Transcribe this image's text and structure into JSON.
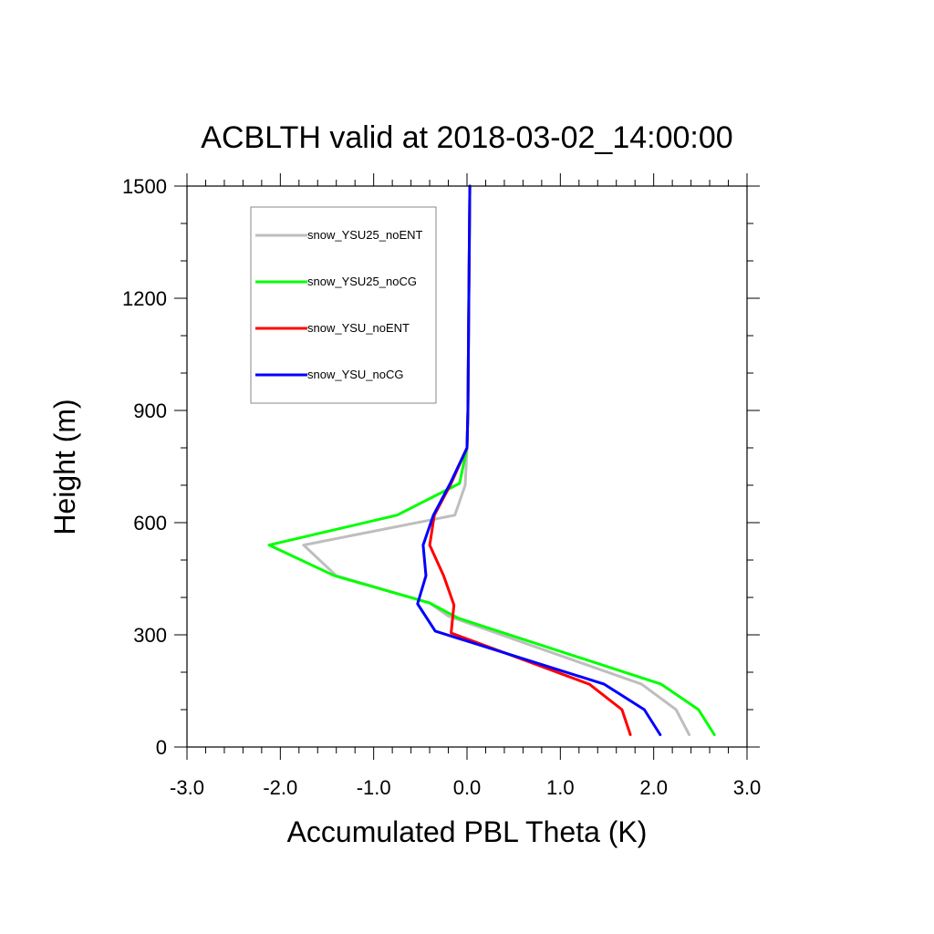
{
  "chart_data": {
    "type": "line",
    "title": "ACBLTH valid at 2018-03-02_14:00:00",
    "xlabel": "Accumulated PBL Theta (K)",
    "ylabel": "Height (m)",
    "xlim": [
      -3.0,
      3.0
    ],
    "ylim": [
      0,
      1500
    ],
    "x_ticks": [
      -3.0,
      -2.0,
      -1.0,
      0.0,
      1.0,
      2.0,
      3.0
    ],
    "x_tick_labels": [
      "-3.0",
      "-2.0",
      "-1.0",
      "0.0",
      "1.0",
      "2.0",
      "3.0"
    ],
    "y_ticks": [
      0,
      300,
      600,
      900,
      1200,
      1500
    ],
    "y_tick_labels": [
      "0",
      "300",
      "600",
      "900",
      "1200",
      "1500"
    ],
    "grid": false,
    "legend_position": "top-left",
    "series": [
      {
        "name": "snow_YSU25_noENT",
        "color": "#bebebe",
        "points": [
          [
            2.38,
            33
          ],
          [
            2.24,
            100
          ],
          [
            1.87,
            168
          ],
          [
            -0.2,
            350
          ],
          [
            -0.4,
            385
          ],
          [
            -1.4,
            458
          ],
          [
            -1.75,
            540
          ],
          [
            -0.13,
            620
          ],
          [
            -0.02,
            700
          ],
          [
            0.0,
            800
          ],
          [
            0.01,
            900
          ],
          [
            0.02,
            1200
          ],
          [
            0.03,
            1500
          ]
        ]
      },
      {
        "name": "snow_YSU25_noCG",
        "color": "#00ff00",
        "points": [
          [
            2.65,
            33
          ],
          [
            2.48,
            100
          ],
          [
            2.08,
            168
          ],
          [
            -0.1,
            345
          ],
          [
            -0.4,
            385
          ],
          [
            -1.42,
            458
          ],
          [
            -2.12,
            540
          ],
          [
            -0.75,
            620
          ],
          [
            -0.08,
            705
          ],
          [
            0.0,
            800
          ],
          [
            0.01,
            900
          ],
          [
            0.02,
            1200
          ],
          [
            0.03,
            1500
          ]
        ]
      },
      {
        "name": "snow_YSU_noENT",
        "color": "#ff0000",
        "points": [
          [
            1.75,
            33
          ],
          [
            1.66,
            100
          ],
          [
            1.31,
            168
          ],
          [
            -0.17,
            305
          ],
          [
            -0.14,
            380
          ],
          [
            -0.25,
            458
          ],
          [
            -0.4,
            540
          ],
          [
            -0.35,
            620
          ],
          [
            -0.17,
            705
          ],
          [
            0.0,
            800
          ],
          [
            0.01,
            900
          ],
          [
            0.02,
            1200
          ],
          [
            0.03,
            1500
          ]
        ]
      },
      {
        "name": "snow_YSU_noCG",
        "color": "#0000ff",
        "points": [
          [
            2.07,
            33
          ],
          [
            1.9,
            100
          ],
          [
            1.47,
            168
          ],
          [
            -0.34,
            310
          ],
          [
            -0.53,
            383
          ],
          [
            -0.44,
            458
          ],
          [
            -0.47,
            540
          ],
          [
            -0.36,
            620
          ],
          [
            -0.18,
            705
          ],
          [
            0.0,
            800
          ],
          [
            0.01,
            900
          ],
          [
            0.02,
            1200
          ],
          [
            0.03,
            1500
          ]
        ]
      }
    ]
  }
}
